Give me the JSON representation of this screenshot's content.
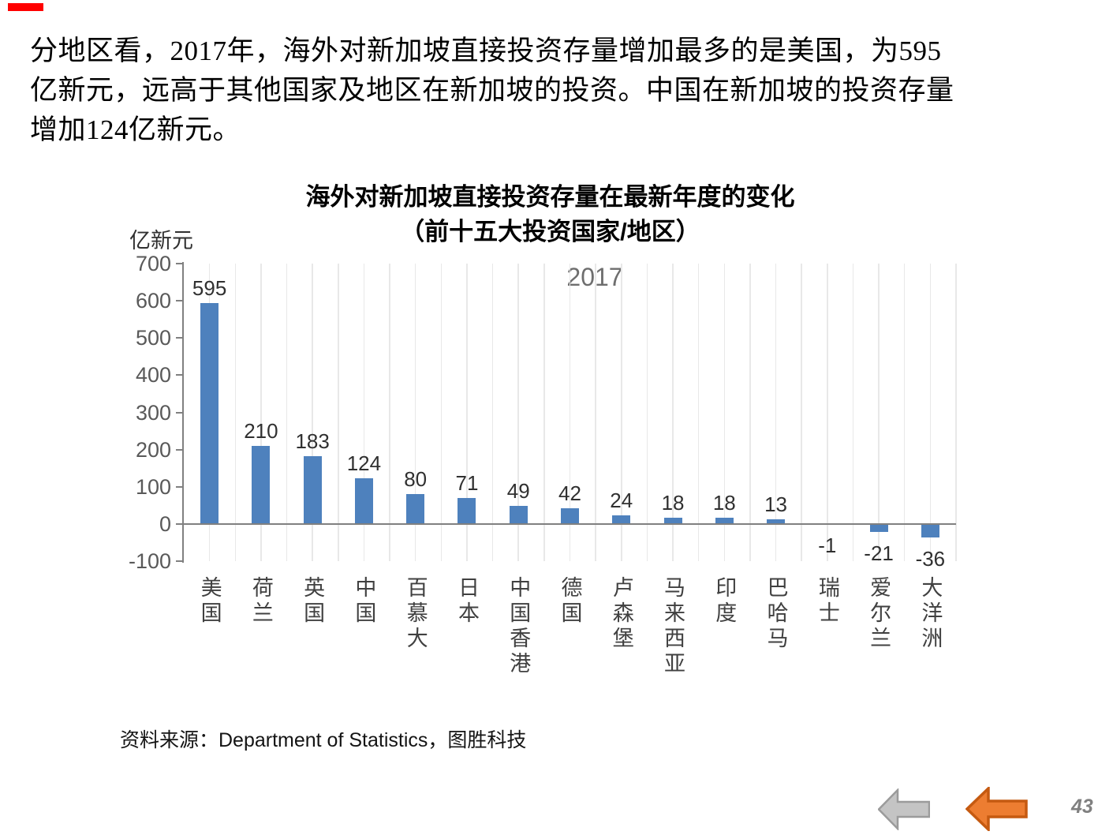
{
  "decor": {
    "red_bar_color": "#FF0000"
  },
  "intro": {
    "lines": [
      "分地区看，2017年，海外对新加坡直接投资存量增加最多的是美国，为595",
      "亿新元，远高于其他国家及地区在新加坡的投资。中国在新加坡的投资存量",
      "增加124亿新元。"
    ]
  },
  "chart": {
    "title": "海外对新加坡直接投资存量在最新年度的变化",
    "subtitle": "（前十五大投资国家/地区）",
    "unit_label": "亿新元",
    "legend_label": "2017"
  },
  "chart_data": {
    "type": "bar",
    "title": "海外对新加坡直接投资存量在最新年度的变化（前十五大投资国家/地区）",
    "categories": [
      "美国",
      "荷兰",
      "英国",
      "中国",
      "百慕大",
      "日本",
      "中国香港",
      "德国",
      "卢森堡",
      "马来西亚",
      "印度",
      "巴哈马",
      "瑞士",
      "爱尔兰",
      "大洋洲"
    ],
    "series": [
      {
        "name": "2017",
        "values": [
          595,
          210,
          183,
          124,
          80,
          71,
          49,
          42,
          24,
          18,
          18,
          13,
          -1,
          -21,
          -36
        ]
      }
    ],
    "xlabel": "",
    "ylabel": "亿新元",
    "ylim": [
      -100,
      700
    ],
    "yticks": [
      700,
      600,
      500,
      400,
      300,
      200,
      100,
      0,
      -100
    ],
    "grid": "vertical-light",
    "legend_position": "inside-top-center",
    "bar_color": "#4E81BD",
    "gridline_color": "#E8E8E8",
    "axis_color": "#808080",
    "tick_label_color": "#595959",
    "value_label_color": "#303030"
  },
  "source": {
    "text": "资料来源：Department of Statistics，图胜科技"
  },
  "nav": {
    "gray_arrow": {
      "icon": "left-arrow-icon",
      "fill": "#C4C4C4",
      "stroke": "#9B9B9B"
    },
    "orange_arrow": {
      "icon": "left-arrow-icon",
      "fill": "#ED7D31",
      "stroke": "#C55A11"
    }
  },
  "page": {
    "number": "43"
  }
}
